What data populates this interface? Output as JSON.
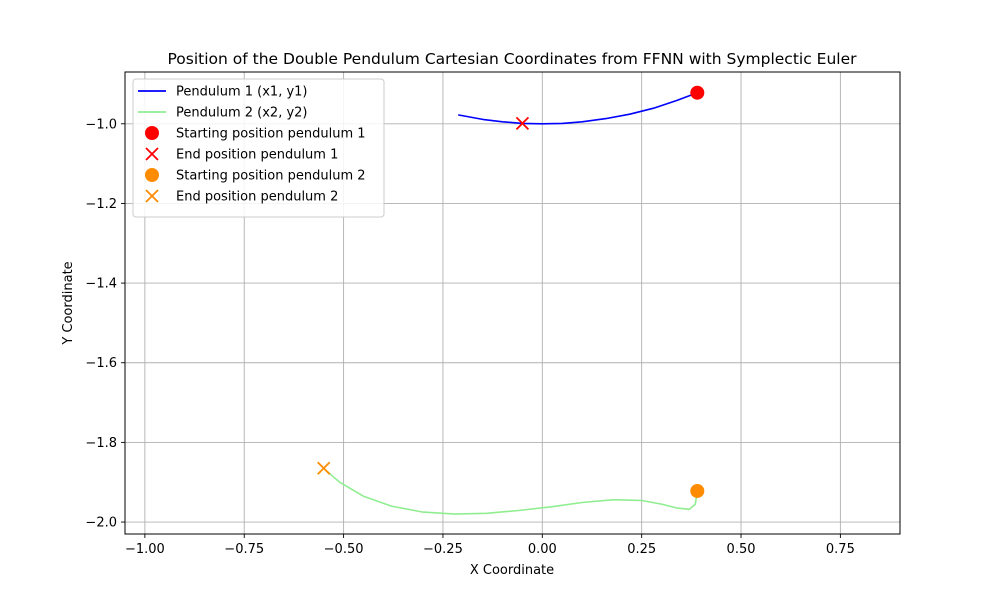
{
  "chart_data": {
    "type": "line",
    "title": "Position of the Double Pendulum Cartesian Coordinates from FFNN with Symplectic Euler",
    "xlabel": "X Coordinate",
    "ylabel": "Y Coordinate",
    "xlim": [
      -1.05,
      0.9
    ],
    "ylim": [
      -2.03,
      -0.87
    ],
    "xticks": [
      -1.0,
      -0.75,
      -0.5,
      -0.25,
      0.0,
      0.25,
      0.5,
      0.75
    ],
    "xtick_labels": [
      "−1.00",
      "−0.75",
      "−0.50",
      "−0.25",
      "0.00",
      "0.25",
      "0.50",
      "0.75"
    ],
    "yticks": [
      -1.0,
      -1.2,
      -1.4,
      -1.6,
      -1.8,
      -2.0
    ],
    "ytick_labels": [
      "−1.0",
      "−1.2",
      "−1.4",
      "−1.6",
      "−1.8",
      "−2.0"
    ],
    "grid": true,
    "legend_position": "top-left",
    "series": [
      {
        "name": "Pendulum 1 (x1, y1)",
        "kind": "line",
        "color": "#0000ff",
        "x": [
          0.39,
          0.34,
          0.28,
          0.22,
          0.16,
          0.1,
          0.05,
          0.0,
          -0.05,
          -0.1,
          -0.15,
          -0.21,
          -0.15,
          -0.1,
          -0.05
        ],
        "y": [
          -0.922,
          -0.941,
          -0.961,
          -0.976,
          -0.987,
          -0.995,
          -0.999,
          -1.0,
          -0.999,
          -0.995,
          -0.989,
          -0.978,
          -0.989,
          -0.995,
          -0.999
        ]
      },
      {
        "name": "Pendulum 2 (x2, y2)",
        "kind": "line",
        "color": "#90ee90",
        "x": [
          0.39,
          0.385,
          0.37,
          0.34,
          0.3,
          0.25,
          0.18,
          0.1,
          0.02,
          -0.06,
          -0.14,
          -0.22,
          -0.3,
          -0.38,
          -0.45,
          -0.51,
          -0.55
        ],
        "y": [
          -1.922,
          -1.955,
          -1.968,
          -1.965,
          -1.955,
          -1.946,
          -1.944,
          -1.951,
          -1.962,
          -1.971,
          -1.978,
          -1.98,
          -1.975,
          -1.96,
          -1.935,
          -1.9,
          -1.865
        ]
      },
      {
        "name": "Starting position pendulum 1",
        "kind": "circle",
        "color": "#ff0000",
        "x": [
          0.39
        ],
        "y": [
          -0.922
        ]
      },
      {
        "name": "End position pendulum 1",
        "kind": "x",
        "color": "#ff0000",
        "x": [
          -0.05
        ],
        "y": [
          -0.999
        ]
      },
      {
        "name": "Starting position pendulum 2",
        "kind": "circle",
        "color": "#ff8c00",
        "x": [
          0.39
        ],
        "y": [
          -1.922
        ]
      },
      {
        "name": "End position pendulum 2",
        "kind": "x",
        "color": "#ff8c00",
        "x": [
          -0.55
        ],
        "y": [
          -1.865
        ]
      }
    ]
  }
}
